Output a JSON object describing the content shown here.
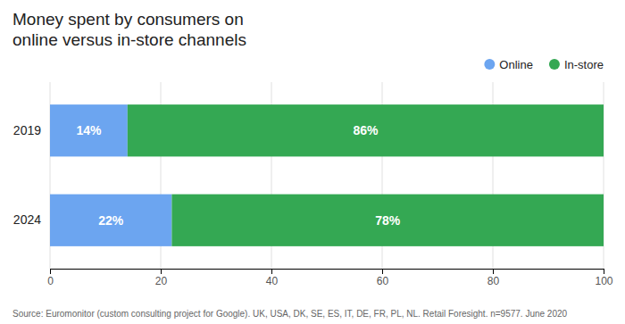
{
  "chart_data": {
    "type": "bar",
    "orientation": "horizontal",
    "stacked": true,
    "title": "Money spent by consumers on\nonline versus in-store channels",
    "annotation": "Source: Euromonitor (custom consulting project for Google). UK, USA, DK, SE, ES, IT, DE, FR, PL, NL. Retail Foresight. n=9577. June 2020",
    "categories": [
      "2019",
      "2024"
    ],
    "series": [
      {
        "name": "Online",
        "color": "#6CA5F0",
        "values": [
          14,
          22
        ],
        "value_labels": [
          "14%",
          "22%"
        ]
      },
      {
        "name": "In-store",
        "color": "#34A853",
        "values": [
          86,
          78
        ],
        "value_labels": [
          "86%",
          "78%"
        ]
      }
    ],
    "xlim": [
      0,
      100
    ],
    "xticks": [
      0,
      20,
      40,
      60,
      80,
      100
    ],
    "grid": true,
    "legend": "upper right",
    "data_labels": true
  }
}
